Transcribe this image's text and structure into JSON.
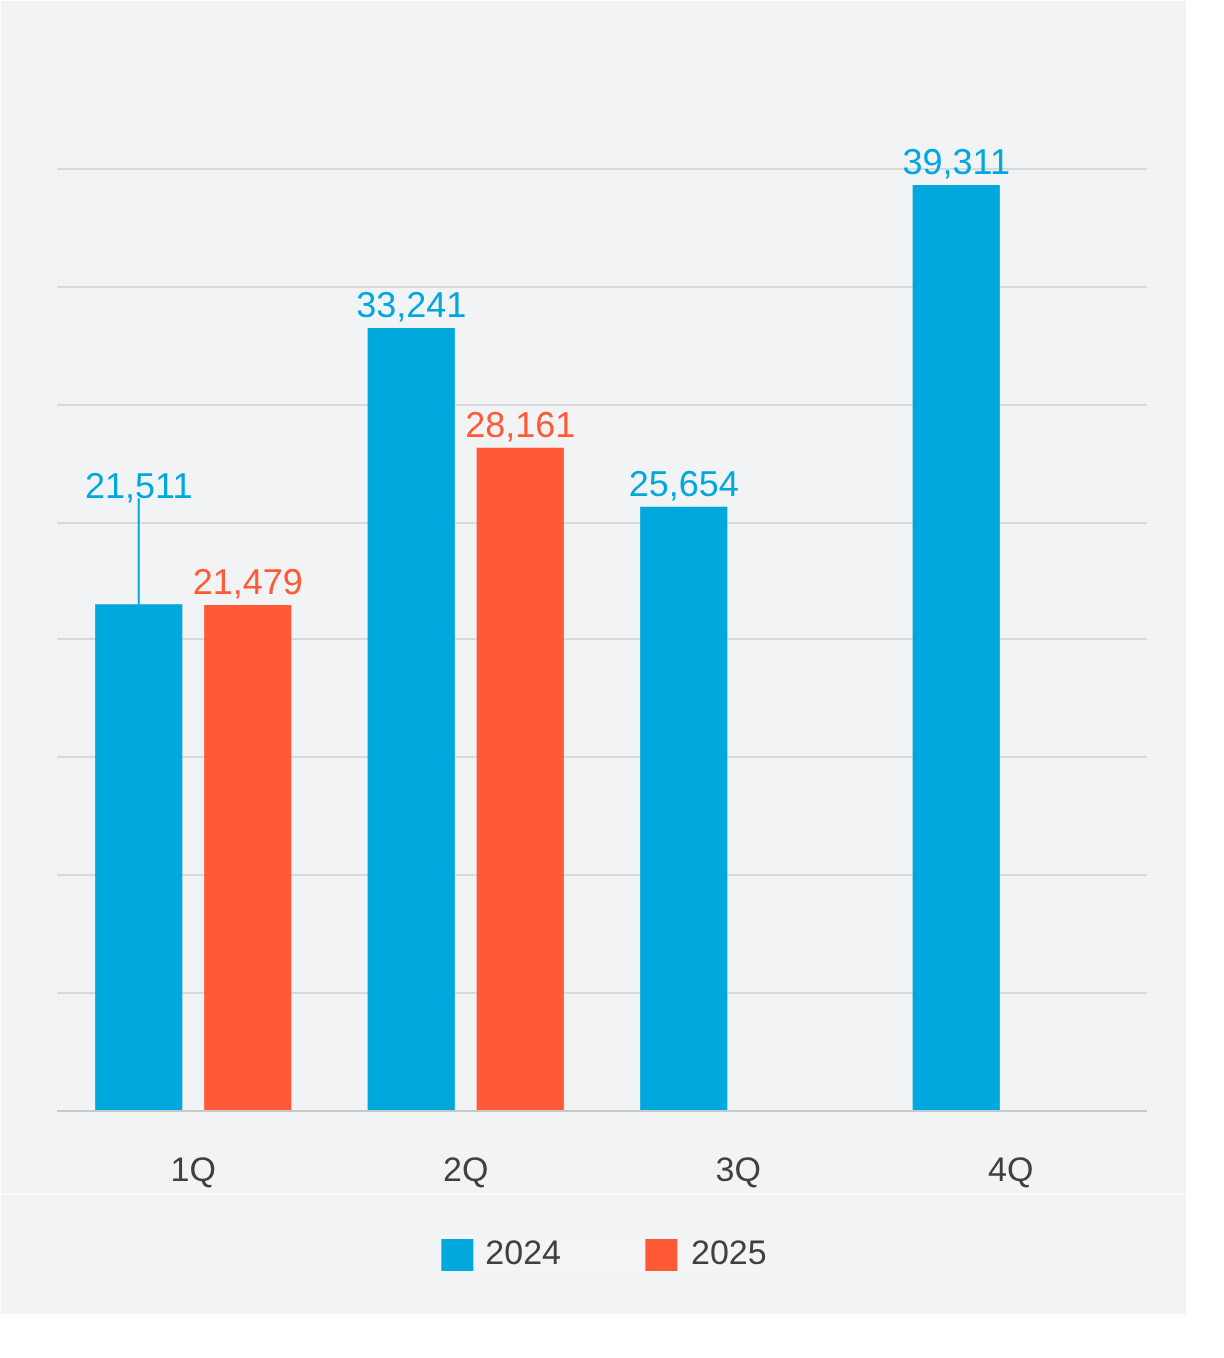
{
  "chart_data": {
    "type": "bar",
    "categories": [
      "1Q",
      "2Q",
      "3Q",
      "4Q"
    ],
    "series": [
      {
        "name": "2024",
        "color": "#00a8de",
        "values": [
          21511,
          33241,
          25654,
          39311
        ],
        "value_labels": [
          "21,511",
          "33,241",
          "25,654",
          "39,311"
        ]
      },
      {
        "name": "2025",
        "color": "#ff5a36",
        "values": [
          21479,
          28161,
          null,
          null
        ],
        "value_labels": [
          "21,479",
          "28,161",
          null,
          null
        ]
      }
    ],
    "ylim": [
      0,
      45000
    ],
    "yticks": [
      {
        "value": 0,
        "label": null
      },
      {
        "value": 5000,
        "label": null
      },
      {
        "value": 10000,
        "label": null
      },
      {
        "value": 15000,
        "label": null
      },
      {
        "value": 20000,
        "label": null
      },
      {
        "value": 25000,
        "label": null
      },
      {
        "value": 30000,
        "label": null
      },
      {
        "value": 35000,
        "label": null
      },
      {
        "value": 40000,
        "label": null
      },
      {
        "value": 45000,
        "label": null
      }
    ],
    "tick_labels": "x",
    "grid": "y",
    "legend": "bottom"
  }
}
